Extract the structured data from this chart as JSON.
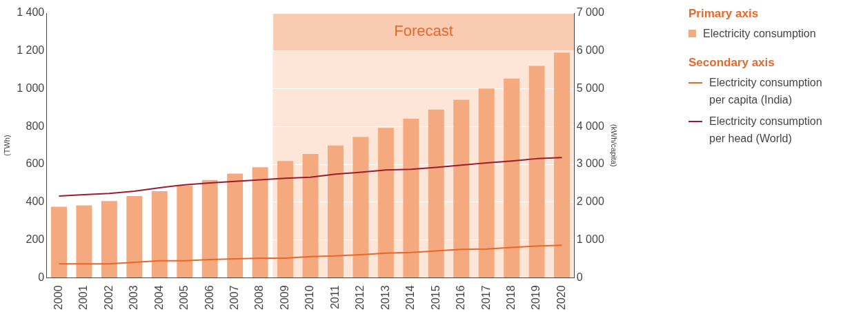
{
  "chart_data": {
    "type": "bar",
    "categories": [
      "2000",
      "2001",
      "2002",
      "2003",
      "2004",
      "2005",
      "2006",
      "2007",
      "2008",
      "2009",
      "2010",
      "2011",
      "2012",
      "2013",
      "2014",
      "2015",
      "2016",
      "2017",
      "2018",
      "2019",
      "2020"
    ],
    "series": [
      {
        "name": "Electricity consumption",
        "color": "#f4a97f",
        "values": [
          376,
          383,
          406,
          432,
          458,
          488,
          517,
          551,
          585,
          618,
          655,
          700,
          745,
          793,
          841,
          890,
          942,
          1001,
          1054,
          1121,
          1191
        ]
      },
      {
        "name": "Electricity consumption per capita (India)",
        "type": "line",
        "axis": "y2",
        "color": "#e8672a",
        "values": [
          370,
          370,
          370,
          410,
          450,
          450,
          480,
          500,
          520,
          520,
          560,
          580,
          610,
          650,
          670,
          710,
          750,
          760,
          800,
          840,
          860
        ]
      },
      {
        "name": "Electricity consumption per head (World)",
        "type": "line",
        "axis": "y2",
        "color": "#9b1b30",
        "values": [
          2160,
          2200,
          2230,
          2290,
          2380,
          2460,
          2510,
          2550,
          2590,
          2630,
          2660,
          2740,
          2790,
          2850,
          2870,
          2920,
          2980,
          3040,
          3090,
          3150,
          3180
        ]
      }
    ],
    "ylabel": "(TWh)",
    "y2label": "(kWh/capita)",
    "ylim": [
      0,
      1400
    ],
    "yticks": [
      0,
      200,
      400,
      600,
      800,
      {
        "value": 1000,
        "label": "1 000"
      },
      {
        "value": 1200,
        "label": "1 200"
      },
      {
        "value": 1400,
        "label": "1 400"
      }
    ],
    "y2lim": [
      0,
      7000
    ],
    "y2ticks": [
      0,
      {
        "value": 1000,
        "label": "1 000"
      },
      {
        "value": 2000,
        "label": "2 000"
      },
      {
        "value": 3000,
        "label": "3 000"
      },
      {
        "value": 4000,
        "label": "4 000"
      },
      {
        "value": 5000,
        "label": "5 000"
      },
      {
        "value": 6000,
        "label": "6 000"
      },
      {
        "value": 7000,
        "label": "7 000"
      }
    ],
    "bands": [
      {
        "axis": "x",
        "from": "2009",
        "to": "2020",
        "color": "#fde6d8"
      },
      {
        "axis": "y",
        "from": 1200,
        "to": 1400,
        "label": "Forecast",
        "color": "#f9cbb0"
      }
    ],
    "legend": "right",
    "legend_title": "Primary axis",
    "annotations": [
      "Secondary axis"
    ],
    "grid": "y",
    "marker": "none",
    "line_style": "solid"
  }
}
